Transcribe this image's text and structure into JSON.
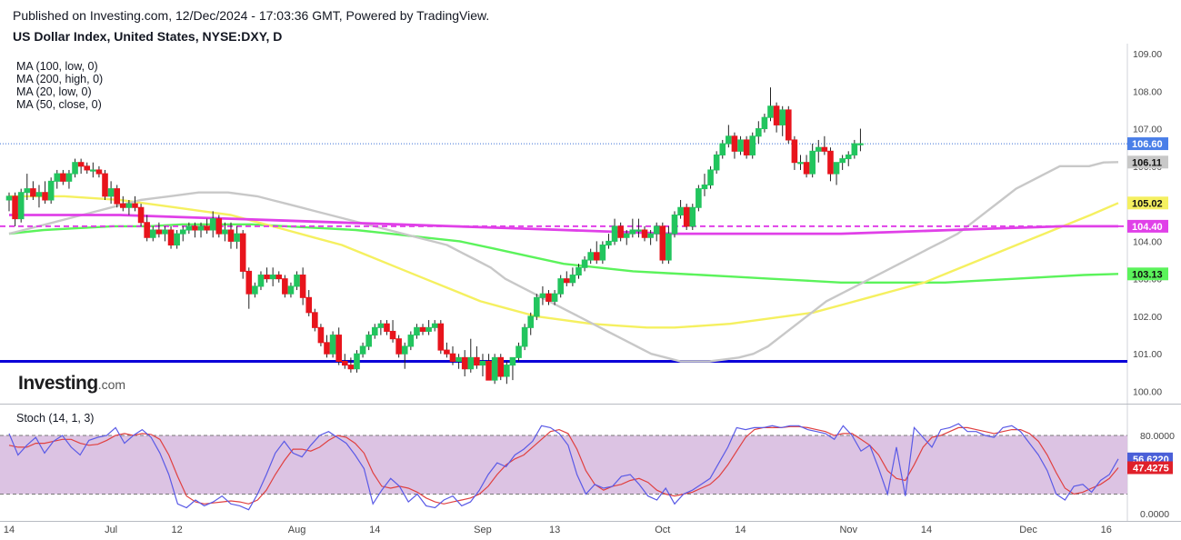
{
  "header": {
    "published": "Published on Investing.com, 12/Dec/2024 - 17:03:36 GMT, Powered by TradingView.",
    "symbol": "US Dollar Index, United States, NYSE:DXY, D"
  },
  "legend": [
    "MA (100, low, 0)",
    "MA (200, high, 0)",
    "MA (20, low, 0)",
    "MA (50, close, 0)"
  ],
  "logo": {
    "brand": "Investing",
    "suffix": ".com"
  },
  "stoch_label": "Stoch (14, 1, 3)",
  "colors": {
    "up": "#22c55e",
    "down": "#e8141c",
    "ma20": "#c8c8c8",
    "ma50": "#f5f060",
    "ma100": "#5bf35b",
    "ma200": "#e040e8",
    "support": "#0a00d8",
    "stoch_band": "#dcc3e3",
    "stoch_k": "#5a5ae6",
    "stoch_d": "#e04040"
  },
  "chart_data": {
    "type": "candlestick",
    "price_axis": {
      "min": 99.6,
      "max": 109.0,
      "ticks": [
        "109.00",
        "108.00",
        "107.00",
        "106.00",
        "105.00",
        "104.00",
        "103.00",
        "102.00",
        "101.00",
        "100.00"
      ],
      "tick_values": [
        109,
        108,
        107,
        106,
        105,
        104,
        103,
        102,
        101,
        100
      ]
    },
    "x_labels": [
      {
        "label": "14",
        "day": 0
      },
      {
        "label": "Jul",
        "day": 17
      },
      {
        "label": "12",
        "day": 28
      },
      {
        "label": "Aug",
        "day": 48
      },
      {
        "label": "14",
        "day": 61
      },
      {
        "label": "Sep",
        "day": 79
      },
      {
        "label": "13",
        "day": 91
      },
      {
        "label": "Oct",
        "day": 109
      },
      {
        "label": "14",
        "day": 122
      },
      {
        "label": "Nov",
        "day": 140
      },
      {
        "label": "14",
        "day": 153
      },
      {
        "label": "Dec",
        "day": 170
      },
      {
        "label": "16",
        "day": 183
      }
    ],
    "days_total": 186,
    "ohlc": [
      [
        105.1,
        105.3,
        104.8,
        105.2
      ],
      [
        105.2,
        105.3,
        104.4,
        104.6
      ],
      [
        104.6,
        105.4,
        104.5,
        105.3
      ],
      [
        105.3,
        105.8,
        105.1,
        105.4
      ],
      [
        105.4,
        105.6,
        105.1,
        105.2
      ],
      [
        105.2,
        105.5,
        104.9,
        105.3
      ],
      [
        105.3,
        105.6,
        105.0,
        105.1
      ],
      [
        105.1,
        105.7,
        105.0,
        105.6
      ],
      [
        105.6,
        105.9,
        105.4,
        105.8
      ],
      [
        105.8,
        105.9,
        105.5,
        105.6
      ],
      [
        105.6,
        105.9,
        105.4,
        105.8
      ],
      [
        105.8,
        106.2,
        105.7,
        106.1
      ],
      [
        106.1,
        106.2,
        105.8,
        106.0
      ],
      [
        106.0,
        106.1,
        105.8,
        105.9
      ],
      [
        105.9,
        106.1,
        105.7,
        105.9
      ],
      [
        105.9,
        106.0,
        105.7,
        105.8
      ],
      [
        105.8,
        105.9,
        105.1,
        105.2
      ],
      [
        105.2,
        105.6,
        105.0,
        105.4
      ],
      [
        105.4,
        105.5,
        104.9,
        105.0
      ],
      [
        105.0,
        105.2,
        104.8,
        104.9
      ],
      [
        104.9,
        105.1,
        104.7,
        105.0
      ],
      [
        105.0,
        105.2,
        104.8,
        104.9
      ],
      [
        104.9,
        105.0,
        104.4,
        104.5
      ],
      [
        104.5,
        104.7,
        104.0,
        104.1
      ],
      [
        104.1,
        104.4,
        104.0,
        104.3
      ],
      [
        104.3,
        104.5,
        104.1,
        104.2
      ],
      [
        104.2,
        104.4,
        104.0,
        104.3
      ],
      [
        104.3,
        104.4,
        103.8,
        103.9
      ],
      [
        103.9,
        104.3,
        103.8,
        104.2
      ],
      [
        104.2,
        104.4,
        104.0,
        104.3
      ],
      [
        104.3,
        104.5,
        104.2,
        104.4
      ],
      [
        104.4,
        104.5,
        104.1,
        104.3
      ],
      [
        104.3,
        104.5,
        104.1,
        104.4
      ],
      [
        104.4,
        104.6,
        104.2,
        104.3
      ],
      [
        104.3,
        104.8,
        104.1,
        104.6
      ],
      [
        104.6,
        104.7,
        104.1,
        104.2
      ],
      [
        104.2,
        104.5,
        104.0,
        104.3
      ],
      [
        104.3,
        104.5,
        103.8,
        104.0
      ],
      [
        104.0,
        104.4,
        103.8,
        104.2
      ],
      [
        104.2,
        104.3,
        103.0,
        103.2
      ],
      [
        103.2,
        103.3,
        102.2,
        102.6
      ],
      [
        102.6,
        102.9,
        102.5,
        102.8
      ],
      [
        102.8,
        103.2,
        102.7,
        103.1
      ],
      [
        103.1,
        103.3,
        102.9,
        103.0
      ],
      [
        103.0,
        103.3,
        102.8,
        103.1
      ],
      [
        103.1,
        103.2,
        102.9,
        103.0
      ],
      [
        103.0,
        103.1,
        102.5,
        102.6
      ],
      [
        102.6,
        102.9,
        102.5,
        102.8
      ],
      [
        102.8,
        103.2,
        102.7,
        103.1
      ],
      [
        103.1,
        103.3,
        102.3,
        102.5
      ],
      [
        102.5,
        102.7,
        102.0,
        102.1
      ],
      [
        102.1,
        102.2,
        101.6,
        101.7
      ],
      [
        101.7,
        101.8,
        101.2,
        101.3
      ],
      [
        101.3,
        101.5,
        100.9,
        101.0
      ],
      [
        101.0,
        101.6,
        100.9,
        101.5
      ],
      [
        101.5,
        101.7,
        100.7,
        100.8
      ],
      [
        100.8,
        101.0,
        100.6,
        100.7
      ],
      [
        100.7,
        100.9,
        100.5,
        100.6
      ],
      [
        100.6,
        101.1,
        100.5,
        101.0
      ],
      [
        101.0,
        101.3,
        100.9,
        101.2
      ],
      [
        101.2,
        101.6,
        101.1,
        101.5
      ],
      [
        101.5,
        101.8,
        101.4,
        101.7
      ],
      [
        101.7,
        101.9,
        101.5,
        101.8
      ],
      [
        101.8,
        101.9,
        101.5,
        101.6
      ],
      [
        101.6,
        101.9,
        101.3,
        101.4
      ],
      [
        101.4,
        101.5,
        100.9,
        101.0
      ],
      [
        101.0,
        101.3,
        100.6,
        101.2
      ],
      [
        101.2,
        101.6,
        101.1,
        101.5
      ],
      [
        101.5,
        101.8,
        101.4,
        101.7
      ],
      [
        101.7,
        101.8,
        101.5,
        101.6
      ],
      [
        101.6,
        101.9,
        101.5,
        101.7
      ],
      [
        101.7,
        101.9,
        101.6,
        101.8
      ],
      [
        101.8,
        101.9,
        101.0,
        101.1
      ],
      [
        101.1,
        101.3,
        100.9,
        101.0
      ],
      [
        101.0,
        101.2,
        100.7,
        100.8
      ],
      [
        100.8,
        101.0,
        100.6,
        100.9
      ],
      [
        100.9,
        101.1,
        100.4,
        100.6
      ],
      [
        100.6,
        101.4,
        100.5,
        100.9
      ],
      [
        100.9,
        101.2,
        100.6,
        100.7
      ],
      [
        100.7,
        101.0,
        100.4,
        100.8
      ],
      [
        100.8,
        101.0,
        100.3,
        100.3
      ],
      [
        100.3,
        101.0,
        100.2,
        100.9
      ],
      [
        100.9,
        101.0,
        100.3,
        100.4
      ],
      [
        100.4,
        100.8,
        100.2,
        100.7
      ],
      [
        100.7,
        100.9,
        100.3,
        100.9
      ],
      [
        100.9,
        101.3,
        100.8,
        101.2
      ],
      [
        101.2,
        101.8,
        101.1,
        101.7
      ],
      [
        101.7,
        102.1,
        101.5,
        102.0
      ],
      [
        102.0,
        102.6,
        101.9,
        102.5
      ],
      [
        102.5,
        102.8,
        102.3,
        102.6
      ],
      [
        102.6,
        102.7,
        102.3,
        102.4
      ],
      [
        102.4,
        102.7,
        102.3,
        102.6
      ],
      [
        102.6,
        103.1,
        102.5,
        103.0
      ],
      [
        103.0,
        103.2,
        102.8,
        102.9
      ],
      [
        102.9,
        103.3,
        102.8,
        103.1
      ],
      [
        103.1,
        103.4,
        103.0,
        103.3
      ],
      [
        103.3,
        103.6,
        103.2,
        103.5
      ],
      [
        103.5,
        103.8,
        103.4,
        103.7
      ],
      [
        103.7,
        104.0,
        103.4,
        103.5
      ],
      [
        103.5,
        104.0,
        103.4,
        103.9
      ],
      [
        103.9,
        104.2,
        103.8,
        104.0
      ],
      [
        104.0,
        104.6,
        103.9,
        104.4
      ],
      [
        104.4,
        104.5,
        104.0,
        104.1
      ],
      [
        104.1,
        104.3,
        103.9,
        104.2
      ],
      [
        104.2,
        104.6,
        104.1,
        104.3
      ],
      [
        104.3,
        104.6,
        104.1,
        104.3
      ],
      [
        104.3,
        104.4,
        104.0,
        104.1
      ],
      [
        104.1,
        104.3,
        103.9,
        104.2
      ],
      [
        104.2,
        104.5,
        104.0,
        104.4
      ],
      [
        104.4,
        104.5,
        103.4,
        103.5
      ],
      [
        103.5,
        104.4,
        103.4,
        104.2
      ],
      [
        104.2,
        104.8,
        104.1,
        104.7
      ],
      [
        104.7,
        105.1,
        104.6,
        104.9
      ],
      [
        104.9,
        105.0,
        104.3,
        104.4
      ],
      [
        104.4,
        105.0,
        104.3,
        104.9
      ],
      [
        104.9,
        105.5,
        104.8,
        105.4
      ],
      [
        105.4,
        105.8,
        105.2,
        105.5
      ],
      [
        105.5,
        106.0,
        105.4,
        105.9
      ],
      [
        105.9,
        106.4,
        105.8,
        106.3
      ],
      [
        106.3,
        106.7,
        106.2,
        106.6
      ],
      [
        106.6,
        107.1,
        106.5,
        106.8
      ],
      [
        106.8,
        106.9,
        106.2,
        106.4
      ],
      [
        106.4,
        106.8,
        106.3,
        106.7
      ],
      [
        106.7,
        106.8,
        106.2,
        106.3
      ],
      [
        106.3,
        106.9,
        106.2,
        106.8
      ],
      [
        106.8,
        107.2,
        106.6,
        107.0
      ],
      [
        107.0,
        107.4,
        106.9,
        107.3
      ],
      [
        107.3,
        108.1,
        107.2,
        107.6
      ],
      [
        107.6,
        107.7,
        106.9,
        107.1
      ],
      [
        107.1,
        107.6,
        106.8,
        107.5
      ],
      [
        107.5,
        107.6,
        106.6,
        106.7
      ],
      [
        106.7,
        106.8,
        105.9,
        106.1
      ],
      [
        106.1,
        106.3,
        105.9,
        106.1
      ],
      [
        106.1,
        106.3,
        105.7,
        105.8
      ],
      [
        105.8,
        106.6,
        105.7,
        106.4
      ],
      [
        106.4,
        106.7,
        106.1,
        106.5
      ],
      [
        106.5,
        106.8,
        106.3,
        106.4
      ],
      [
        106.4,
        106.5,
        105.6,
        105.8
      ],
      [
        105.8,
        106.1,
        105.5,
        106.1
      ],
      [
        106.1,
        106.3,
        105.9,
        106.2
      ],
      [
        106.2,
        106.4,
        106.0,
        106.3
      ],
      [
        106.3,
        106.7,
        106.2,
        106.6
      ],
      [
        106.6,
        107.0,
        106.4,
        106.6
      ]
    ],
    "ma20": [
      104.2,
      104.3,
      104.4,
      104.5,
      104.6,
      104.7,
      104.8,
      104.9,
      105.0,
      105.1,
      105.15,
      105.2,
      105.25,
      105.3,
      105.3,
      105.3,
      105.25,
      105.2,
      105.1,
      105.0,
      104.9,
      104.8,
      104.7,
      104.6,
      104.5,
      104.4,
      104.3,
      104.2,
      104.1,
      104.0,
      103.9,
      103.7,
      103.5,
      103.3,
      103.0,
      102.8,
      102.6,
      102.4,
      102.2,
      102.0,
      101.8,
      101.6,
      101.4,
      101.2,
      101.0,
      100.9,
      100.8,
      100.8,
      100.8,
      100.85,
      100.9,
      101.0,
      101.2,
      101.5,
      101.8,
      102.1,
      102.4,
      102.6,
      102.8,
      103.0,
      103.2,
      103.4,
      103.6,
      103.8,
      104.0,
      104.2,
      104.5,
      104.8,
      105.1,
      105.4,
      105.6,
      105.8,
      106.0,
      106.0,
      106.0,
      106.1,
      106.11
    ],
    "ma50": [
      105.2,
      105.2,
      105.2,
      105.15,
      105.1,
      105.0,
      104.9,
      104.8,
      104.7,
      104.5,
      104.3,
      104.1,
      103.9,
      103.6,
      103.3,
      103.0,
      102.7,
      102.4,
      102.2,
      102.0,
      101.9,
      101.8,
      101.75,
      101.7,
      101.7,
      101.75,
      101.8,
      101.9,
      102.0,
      102.1,
      102.3,
      102.5,
      102.7,
      102.9,
      103.2,
      103.5,
      103.8,
      104.1,
      104.4,
      104.7,
      105.02
    ],
    "ma100": [
      104.2,
      104.3,
      104.35,
      104.4,
      104.4,
      104.45,
      104.45,
      104.45,
      104.4,
      104.35,
      104.3,
      104.2,
      104.1,
      104.0,
      103.8,
      103.6,
      103.4,
      103.3,
      103.2,
      103.15,
      103.1,
      103.05,
      103.0,
      102.95,
      102.9,
      102.9,
      102.9,
      102.9,
      102.95,
      103.0,
      103.05,
      103.1,
      103.13
    ],
    "ma200": [
      104.7,
      104.7,
      104.7,
      104.65,
      104.6,
      104.55,
      104.5,
      104.45,
      104.4,
      104.35,
      104.3,
      104.25,
      104.2,
      104.2,
      104.2,
      104.2,
      104.25,
      104.3,
      104.35,
      104.4,
      104.4
    ],
    "support_line": 100.8,
    "resistance_line": 104.4,
    "last_price": 106.6,
    "price_labels": [
      {
        "text": "106.60",
        "value": 106.6,
        "bg": "#4a7fe8"
      },
      {
        "text": "106.11",
        "value": 106.11,
        "bg": "#c8c8c8"
      },
      {
        "text": "105.02",
        "value": 105.02,
        "bg": "#f5f060"
      },
      {
        "text": "104.40",
        "value": 104.4,
        "bg": "#e040e8"
      },
      {
        "text": "103.13",
        "value": 103.13,
        "bg": "#5bf35b"
      }
    ],
    "stoch": {
      "range": [
        0,
        100
      ],
      "band": [
        20,
        80
      ],
      "ticks": [
        {
          "text": "80.0000",
          "value": 80
        },
        {
          "text": "0.0000",
          "value": 0
        }
      ],
      "k": [
        82,
        60,
        70,
        78,
        62,
        74,
        80,
        68,
        60,
        75,
        78,
        80,
        88,
        72,
        80,
        86,
        78,
        62,
        40,
        10,
        6,
        14,
        8,
        12,
        18,
        10,
        8,
        4,
        20,
        40,
        62,
        74,
        62,
        58,
        70,
        80,
        84,
        78,
        72,
        60,
        46,
        10,
        24,
        36,
        28,
        12,
        20,
        8,
        6,
        14,
        18,
        8,
        12,
        24,
        40,
        52,
        48,
        60,
        66,
        74,
        90,
        88,
        82,
        70,
        40,
        20,
        30,
        26,
        28,
        38,
        40,
        30,
        18,
        14,
        26,
        10,
        20,
        24,
        30,
        36,
        52,
        68,
        88,
        86,
        88,
        88,
        90,
        88,
        90,
        90,
        86,
        84,
        82,
        76,
        90,
        80,
        64,
        70,
        46,
        20,
        68,
        18,
        88,
        78,
        68,
        86,
        88,
        92,
        84,
        84,
        80,
        78,
        88,
        90,
        84,
        72,
        60,
        44,
        20,
        14,
        28,
        30,
        22,
        34,
        40,
        56
      ],
      "d": [
        70,
        68,
        68,
        72,
        72,
        74,
        76,
        76,
        72,
        70,
        71,
        75,
        80,
        82,
        80,
        82,
        81,
        76,
        60,
        38,
        18,
        12,
        10,
        11,
        12,
        13,
        12,
        10,
        14,
        24,
        40,
        54,
        66,
        66,
        64,
        68,
        75,
        80,
        78,
        72,
        62,
        42,
        28,
        26,
        28,
        26,
        22,
        16,
        12,
        10,
        12,
        14,
        16,
        20,
        28,
        40,
        50,
        56,
        60,
        68,
        76,
        84,
        86,
        82,
        66,
        44,
        30,
        24,
        28,
        30,
        34,
        36,
        32,
        24,
        20,
        18,
        20,
        22,
        26,
        30,
        38,
        50,
        64,
        78,
        86,
        88,
        88,
        88,
        89,
        89,
        88,
        86,
        84,
        80,
        82,
        82,
        76,
        70,
        60,
        44,
        36,
        34,
        50,
        68,
        78,
        80,
        84,
        88,
        88,
        86,
        84,
        82,
        84,
        86,
        86,
        82,
        74,
        60,
        42,
        26,
        20,
        22,
        26,
        30,
        36,
        47
      ]
    }
  }
}
